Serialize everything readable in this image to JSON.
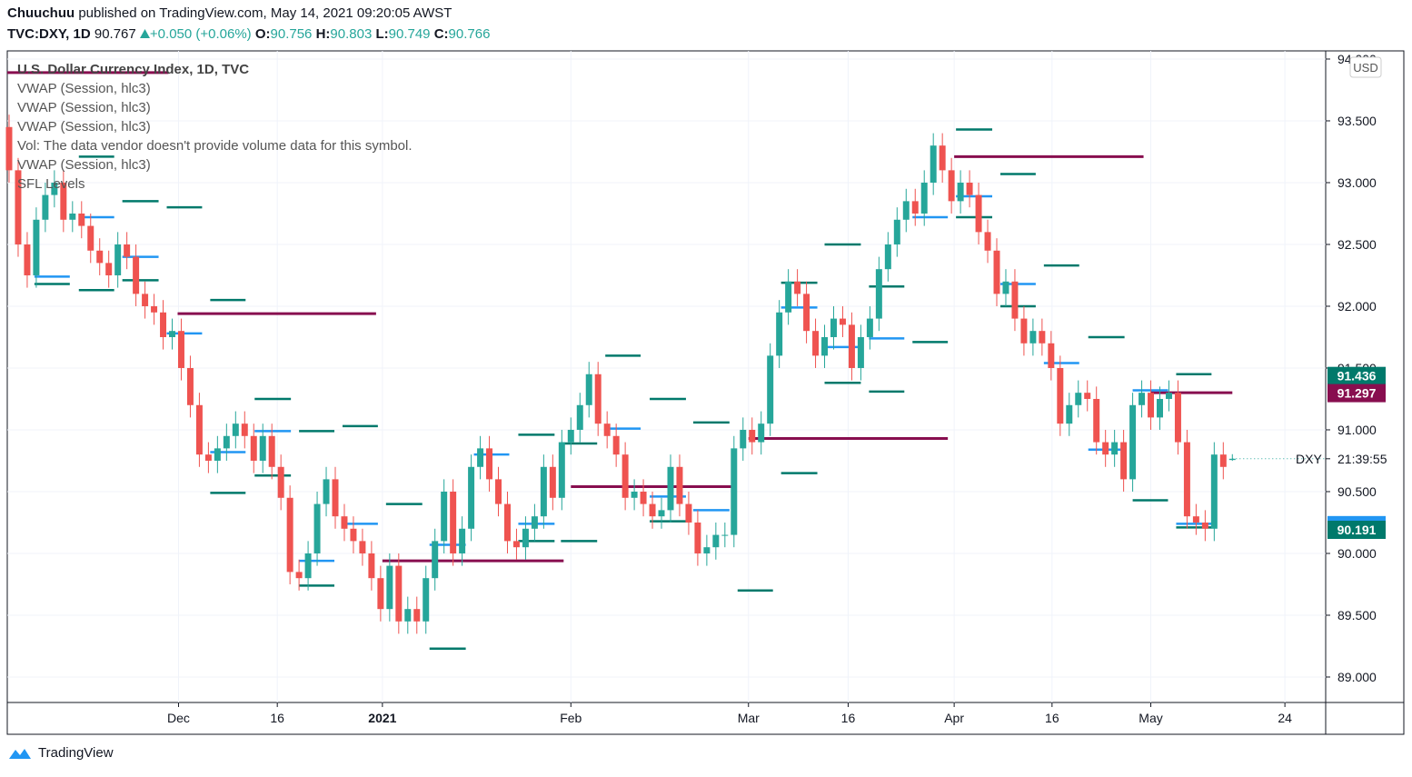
{
  "header": {
    "author": "Chuuchuu",
    "published": "published on TradingView.com, May 14, 2021 09:20:05 AWST",
    "symbol": "TVC:DXY, 1D",
    "last": "90.767",
    "change": "+0.050 (+0.06%)",
    "ohlc": [
      {
        "label": "O:",
        "value": "90.756"
      },
      {
        "label": "H:",
        "value": "90.803"
      },
      {
        "label": "L:",
        "value": "90.749"
      },
      {
        "label": "C:",
        "value": "90.766"
      }
    ]
  },
  "footer": {
    "brand": "TradingView"
  },
  "chart_data": {
    "type": "candlestick",
    "legend": [
      "U.S. Dollar Currency Index, 1D, TVC",
      "VWAP (Session, hlc3)",
      "VWAP (Session, hlc3)",
      "VWAP (Session, hlc3)",
      "Vol: The data vendor doesn't provide volume data for this symbol.",
      "VWAP (Session, hlc3)",
      "SFL Levels"
    ],
    "currency": "USD",
    "up_color": "#26a69a",
    "down_color": "#ef5350",
    "grid": true,
    "xlim": [
      -0.2,
      145.3
    ],
    "xticks": [
      {
        "value": 18.7,
        "label": "Dec"
      },
      {
        "value": 29.6,
        "label": "16"
      },
      {
        "value": 41.2,
        "label": "2021"
      },
      {
        "value": 62.0,
        "label": "Feb"
      },
      {
        "value": 81.6,
        "label": "Mar"
      },
      {
        "value": 92.6,
        "label": "16"
      },
      {
        "value": 104.3,
        "label": "Apr"
      },
      {
        "value": 115.1,
        "label": "16"
      },
      {
        "value": 126.0,
        "label": "May"
      },
      {
        "value": 140.8,
        "label": "24"
      }
    ],
    "ylim": [
      88.794,
      94.066
    ],
    "yticks": [
      {
        "value": 89,
        "label": "89.000"
      },
      {
        "value": 89.5,
        "label": "89.500"
      },
      {
        "value": 90,
        "label": "90.000"
      },
      {
        "value": 90.5,
        "label": "90.500"
      },
      {
        "value": 91,
        "label": "91.000"
      },
      {
        "value": 91.5,
        "label": "91.500"
      },
      {
        "value": 92,
        "label": "92.000"
      },
      {
        "value": 92.5,
        "label": "92.500"
      },
      {
        "value": 93,
        "label": "93.000"
      },
      {
        "value": 93.5,
        "label": "93.500"
      },
      {
        "value": 94,
        "label": "94.000"
      }
    ],
    "open": [
      93.45,
      93.1,
      92.5,
      92.25,
      92.7,
      92.9,
      93.0,
      92.7,
      92.75,
      92.65,
      92.45,
      92.35,
      92.25,
      92.5,
      92.4,
      92.1,
      92.0,
      91.95,
      91.75,
      91.8,
      91.5,
      91.2,
      90.8,
      90.75,
      90.85,
      90.95,
      91.05,
      90.95,
      90.75,
      90.95,
      90.7,
      90.45,
      89.85,
      89.8,
      90.0,
      90.4,
      90.6,
      90.3,
      90.2,
      90.1,
      90.0,
      89.8,
      89.55,
      89.9,
      89.45,
      89.55,
      89.45,
      89.8,
      90.1,
      90.5,
      90.0,
      90.2,
      90.7,
      90.85,
      90.6,
      90.4,
      90.1,
      90.05,
      90.2,
      90.3,
      90.7,
      90.45,
      90.9,
      91.0,
      91.2,
      91.45,
      91.05,
      90.95,
      90.8,
      90.45,
      90.5,
      90.4,
      90.3,
      90.35,
      90.7,
      90.4,
      90.25,
      90.0,
      90.05,
      90.15,
      90.15,
      90.85,
      91.0,
      90.9,
      91.05,
      91.6,
      91.95,
      92.2,
      92.1,
      91.8,
      91.6,
      91.75,
      91.9,
      91.85,
      91.5,
      91.75,
      91.9,
      92.3,
      92.5,
      92.7,
      92.85,
      92.75,
      93.0,
      93.3,
      93.1,
      92.85,
      93.0,
      92.9,
      92.6,
      92.45,
      92.1,
      92.2,
      91.9,
      91.7,
      91.8,
      91.7,
      91.5,
      91.05,
      91.2,
      91.3,
      91.25,
      90.9,
      90.8,
      90.9,
      90.6,
      91.2,
      91.3,
      91.1,
      91.25,
      91.3,
      90.9,
      90.3,
      90.25,
      90.2,
      90.8,
      90.756
    ],
    "high": [
      93.55,
      93.2,
      92.6,
      92.8,
      93.0,
      93.1,
      93.1,
      92.85,
      92.85,
      92.75,
      92.55,
      92.45,
      92.6,
      92.6,
      92.5,
      92.2,
      92.1,
      92.05,
      91.9,
      91.9,
      91.6,
      91.3,
      90.9,
      90.95,
      91.05,
      91.15,
      91.15,
      91.05,
      91.05,
      91.05,
      90.8,
      90.55,
      89.95,
      90.1,
      90.5,
      90.7,
      90.7,
      90.4,
      90.3,
      90.2,
      90.1,
      89.9,
      90.0,
      90.0,
      89.65,
      89.65,
      89.9,
      90.2,
      90.6,
      90.6,
      90.3,
      90.8,
      90.95,
      90.95,
      90.7,
      90.5,
      90.2,
      90.3,
      90.4,
      90.8,
      90.8,
      91.0,
      91.1,
      91.3,
      91.55,
      91.55,
      91.15,
      91.05,
      90.9,
      90.6,
      90.6,
      90.5,
      90.45,
      90.8,
      90.8,
      90.5,
      90.35,
      90.15,
      90.25,
      90.25,
      90.95,
      91.1,
      91.1,
      91.15,
      91.7,
      92.05,
      92.3,
      92.3,
      92.2,
      91.9,
      91.85,
      92.0,
      92.0,
      91.95,
      91.85,
      92.0,
      92.4,
      92.6,
      92.8,
      92.95,
      92.95,
      93.1,
      93.4,
      93.4,
      93.2,
      93.1,
      93.1,
      93.0,
      92.7,
      92.55,
      92.3,
      92.3,
      92.0,
      91.9,
      91.9,
      91.8,
      91.6,
      91.3,
      91.4,
      91.4,
      91.35,
      91.0,
      91.0,
      91.0,
      91.3,
      91.4,
      91.4,
      91.35,
      91.4,
      91.4,
      91.0,
      90.4,
      90.35,
      90.9,
      90.9,
      90.803
    ],
    "low": [
      93.0,
      92.4,
      92.15,
      92.15,
      92.6,
      92.8,
      92.6,
      92.6,
      92.55,
      92.35,
      92.25,
      92.15,
      92.15,
      92.3,
      92.0,
      91.9,
      91.85,
      91.65,
      91.65,
      91.4,
      91.1,
      90.7,
      90.65,
      90.65,
      90.75,
      90.85,
      90.85,
      90.65,
      90.65,
      90.6,
      90.35,
      89.75,
      89.7,
      89.7,
      89.9,
      90.3,
      90.2,
      90.1,
      90.0,
      89.9,
      89.7,
      89.45,
      89.45,
      89.35,
      89.35,
      89.35,
      89.35,
      89.7,
      90.0,
      89.9,
      89.9,
      90.1,
      90.6,
      90.5,
      90.3,
      90.0,
      89.95,
      89.95,
      90.1,
      90.2,
      90.35,
      90.35,
      90.8,
      90.9,
      91.1,
      90.95,
      90.85,
      90.7,
      90.35,
      90.35,
      90.3,
      90.2,
      90.2,
      90.25,
      90.3,
      90.15,
      89.9,
      89.9,
      89.95,
      90.05,
      90.05,
      90.75,
      90.8,
      90.8,
      90.95,
      91.5,
      91.85,
      92.0,
      91.7,
      91.5,
      91.5,
      91.65,
      91.75,
      91.4,
      91.4,
      91.65,
      91.8,
      92.2,
      92.4,
      92.6,
      92.65,
      92.65,
      92.9,
      93.0,
      92.75,
      92.75,
      92.8,
      92.5,
      92.35,
      92.0,
      92.0,
      91.8,
      91.6,
      91.6,
      91.6,
      91.4,
      90.95,
      90.95,
      91.1,
      91.15,
      90.8,
      90.7,
      90.7,
      90.5,
      90.5,
      91.1,
      91.0,
      91.0,
      91.15,
      90.8,
      90.2,
      90.15,
      90.1,
      90.1,
      90.6,
      90.749
    ],
    "close": [
      93.1,
      92.5,
      92.25,
      92.7,
      92.9,
      93.0,
      92.7,
      92.75,
      92.65,
      92.45,
      92.35,
      92.25,
      92.5,
      92.4,
      92.1,
      92.0,
      91.95,
      91.75,
      91.8,
      91.5,
      91.2,
      90.8,
      90.75,
      90.85,
      90.95,
      91.05,
      90.95,
      90.75,
      90.95,
      90.7,
      90.45,
      89.85,
      89.8,
      90.0,
      90.4,
      90.6,
      90.3,
      90.2,
      90.1,
      90.0,
      89.8,
      89.55,
      89.9,
      89.45,
      89.55,
      89.45,
      89.8,
      90.1,
      90.5,
      90.0,
      90.2,
      90.7,
      90.85,
      90.6,
      90.4,
      90.1,
      90.05,
      90.2,
      90.3,
      90.7,
      90.45,
      90.9,
      91.0,
      91.2,
      91.45,
      91.05,
      90.95,
      90.8,
      90.45,
      90.5,
      90.4,
      90.3,
      90.35,
      90.7,
      90.4,
      90.25,
      90.0,
      90.05,
      90.15,
      90.15,
      90.85,
      91.0,
      90.9,
      91.05,
      91.6,
      91.95,
      92.2,
      92.1,
      91.8,
      91.6,
      91.75,
      91.9,
      91.85,
      91.5,
      91.75,
      91.9,
      92.3,
      92.5,
      92.7,
      92.85,
      92.75,
      93.0,
      93.3,
      93.1,
      92.85,
      93.0,
      92.9,
      92.6,
      92.45,
      92.1,
      92.2,
      91.9,
      91.7,
      91.8,
      91.7,
      91.5,
      91.05,
      91.2,
      91.3,
      91.25,
      90.9,
      90.8,
      90.9,
      90.6,
      91.2,
      91.3,
      91.1,
      91.25,
      91.3,
      90.9,
      90.3,
      90.25,
      90.2,
      90.8,
      90.7,
      90.766
    ],
    "overlays": [
      {
        "color": "#880e4f",
        "lines": [
          {
            "value": 93.89,
            "from": -0.2,
            "to": 17.6
          },
          {
            "value": 91.94,
            "from": 18.6,
            "to": 40.5
          },
          {
            "value": 89.94,
            "from": 41.2,
            "to": 61.2
          },
          {
            "value": 90.54,
            "from": 62.0,
            "to": 80.2
          },
          {
            "value": 90.93,
            "from": 81.6,
            "to": 103.6
          },
          {
            "value": 93.21,
            "from": 104.3,
            "to": 125.2
          },
          {
            "value": 91.3,
            "from": 126.0,
            "to": 135.0
          }
        ]
      },
      {
        "color": "#2196f3",
        "lines": [
          {
            "value": 92.24,
            "from": 2.8,
            "to": 6.7
          },
          {
            "value": 92.72,
            "from": 7.7,
            "to": 11.6
          },
          {
            "value": 92.4,
            "from": 12.5,
            "to": 16.5
          },
          {
            "value": 91.78,
            "from": 17.4,
            "to": 21.3
          },
          {
            "value": 90.82,
            "from": 22.2,
            "to": 26.1
          },
          {
            "value": 90.99,
            "from": 27.1,
            "to": 31.1
          },
          {
            "value": 89.94,
            "from": 32.0,
            "to": 35.9
          },
          {
            "value": 90.24,
            "from": 36.8,
            "to": 40.7
          },
          {
            "value": 90.07,
            "from": 46.4,
            "to": 50.4
          },
          {
            "value": 90.8,
            "from": 51.3,
            "to": 55.2
          },
          {
            "value": 90.24,
            "from": 56.2,
            "to": 60.2
          },
          {
            "value": 91.01,
            "from": 65.8,
            "to": 69.7
          },
          {
            "value": 90.46,
            "from": 70.7,
            "to": 74.7
          },
          {
            "value": 90.35,
            "from": 75.5,
            "to": 79.5
          },
          {
            "value": 91.99,
            "from": 85.2,
            "to": 89.2
          },
          {
            "value": 91.67,
            "from": 90.0,
            "to": 94.0
          },
          {
            "value": 91.74,
            "from": 94.9,
            "to": 98.8
          },
          {
            "value": 92.72,
            "from": 99.7,
            "to": 103.6
          },
          {
            "value": 92.89,
            "from": 104.5,
            "to": 108.5
          },
          {
            "value": 92.18,
            "from": 109.4,
            "to": 113.3
          },
          {
            "value": 91.54,
            "from": 114.2,
            "to": 118.1
          },
          {
            "value": 90.84,
            "from": 119.1,
            "to": 123.1
          },
          {
            "value": 91.32,
            "from": 124.0,
            "to": 127.9
          },
          {
            "value": 90.24,
            "from": 128.8,
            "to": 132.7
          }
        ]
      },
      {
        "color": "#00796b",
        "lines": [
          {
            "value": 93.21,
            "from": 7.7,
            "to": 11.6
          },
          {
            "value": 92.85,
            "from": 12.5,
            "to": 16.5
          },
          {
            "value": 92.8,
            "from": 17.4,
            "to": 21.3
          },
          {
            "value": 92.18,
            "from": 2.8,
            "to": 6.7
          },
          {
            "value": 92.13,
            "from": 7.7,
            "to": 11.6
          },
          {
            "value": 92.21,
            "from": 12.5,
            "to": 16.5
          },
          {
            "value": 92.05,
            "from": 22.2,
            "to": 26.1
          },
          {
            "value": 91.25,
            "from": 27.1,
            "to": 31.1
          },
          {
            "value": 91.03,
            "from": 36.8,
            "to": 40.7
          },
          {
            "value": 90.99,
            "from": 32.0,
            "to": 35.9
          },
          {
            "value": 90.63,
            "from": 27.1,
            "to": 31.1
          },
          {
            "value": 90.49,
            "from": 22.2,
            "to": 26.1
          },
          {
            "value": 89.74,
            "from": 32.0,
            "to": 35.9
          },
          {
            "value": 90.4,
            "from": 41.6,
            "to": 45.6
          },
          {
            "value": 89.23,
            "from": 46.4,
            "to": 50.4
          },
          {
            "value": 90.96,
            "from": 56.2,
            "to": 60.2
          },
          {
            "value": 90.89,
            "from": 60.9,
            "to": 64.9
          },
          {
            "value": 91.6,
            "from": 65.8,
            "to": 69.7
          },
          {
            "value": 91.25,
            "from": 70.7,
            "to": 74.7
          },
          {
            "value": 91.06,
            "from": 75.5,
            "to": 79.5
          },
          {
            "value": 90.65,
            "from": 85.2,
            "to": 89.2
          },
          {
            "value": 90.1,
            "from": 56.2,
            "to": 60.2
          },
          {
            "value": 90.1,
            "from": 60.9,
            "to": 64.9
          },
          {
            "value": 90.26,
            "from": 70.7,
            "to": 74.7
          },
          {
            "value": 89.7,
            "from": 80.4,
            "to": 84.3
          },
          {
            "value": 92.5,
            "from": 90.0,
            "to": 94.0
          },
          {
            "value": 92.19,
            "from": 85.2,
            "to": 89.2
          },
          {
            "value": 92.16,
            "from": 94.9,
            "to": 98.8
          },
          {
            "value": 91.71,
            "from": 99.7,
            "to": 103.6
          },
          {
            "value": 91.38,
            "from": 90.0,
            "to": 94.0
          },
          {
            "value": 91.31,
            "from": 94.9,
            "to": 98.8
          },
          {
            "value": 93.43,
            "from": 104.5,
            "to": 108.5
          },
          {
            "value": 93.07,
            "from": 109.4,
            "to": 113.3
          },
          {
            "value": 92.72,
            "from": 104.5,
            "to": 108.5
          },
          {
            "value": 92.33,
            "from": 114.2,
            "to": 118.1
          },
          {
            "value": 92.0,
            "from": 109.4,
            "to": 113.3
          },
          {
            "value": 91.75,
            "from": 119.1,
            "to": 123.1
          },
          {
            "value": 91.45,
            "from": 128.8,
            "to": 132.7
          },
          {
            "value": 90.43,
            "from": 124.0,
            "to": 127.9
          },
          {
            "value": 90.21,
            "from": 128.8,
            "to": 132.7
          }
        ]
      }
    ],
    "price_labels": [
      {
        "value": 91.436,
        "color": "#00796b"
      },
      {
        "value": 91.297,
        "color": "#880e4f"
      },
      {
        "value": 90.229,
        "color": "#2196f3"
      },
      {
        "value": 90.191,
        "color": "#00796b"
      }
    ],
    "countdown": {
      "symbol": "DXY",
      "time": "21:39:55",
      "value": 90.766
    }
  }
}
